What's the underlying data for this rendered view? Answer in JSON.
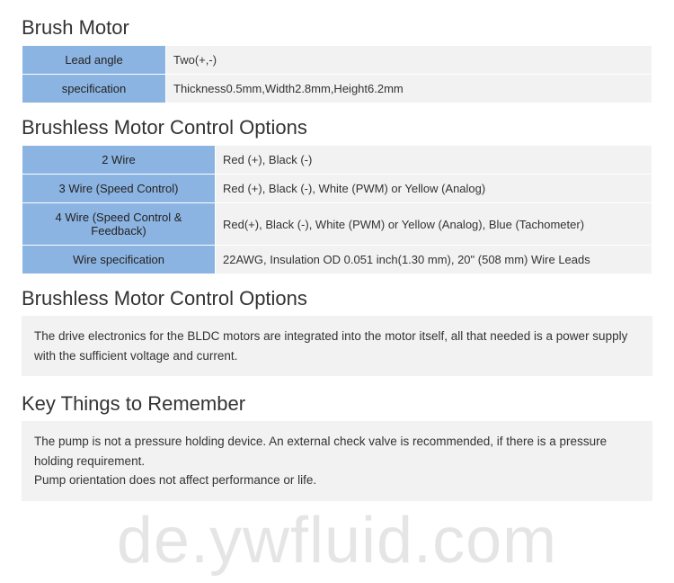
{
  "colors": {
    "header_cell_bg": "#8cb4e2",
    "value_cell_bg": "#f2f2f2",
    "cell_border": "#ffffff",
    "title_color": "#333333",
    "text_color": "#333333",
    "watermark_color": "rgba(0,0,0,0.10)",
    "page_bg": "#ffffff"
  },
  "typography": {
    "title_fontsize": 22,
    "title_weight": 300,
    "body_fontsize": 13,
    "info_fontsize": 13.5,
    "watermark_fontsize": 72
  },
  "section1": {
    "title": "Brush Motor",
    "rows": [
      {
        "label": "Lead angle",
        "value": "Two(+,-)"
      },
      {
        "label": "specification",
        "value": "Thickness0.5mm,Width2.8mm,Height6.2mm"
      }
    ]
  },
  "section2": {
    "title": "Brushless Motor Control Options",
    "rows": [
      {
        "label": "2 Wire",
        "value": "Red (+), Black (-)"
      },
      {
        "label": "3 Wire (Speed Control)",
        "value": "Red (+), Black (-), White (PWM) or Yellow (Analog)"
      },
      {
        "label": "4 Wire (Speed Control & Feedback)",
        "value": "Red(+), Black (-), White (PWM) or Yellow (Analog), Blue (Tachometer)"
      },
      {
        "label": "Wire specification",
        "value": "22AWG, Insulation OD 0.051 inch(1.30 mm), 20\" (508 mm) Wire Leads"
      }
    ]
  },
  "section3": {
    "title": "Brushless Motor Control Options",
    "body": "The drive electronics for the BLDC motors are integrated into the motor itself, all that needed is a power supply with the sufficient voltage and current."
  },
  "section4": {
    "title": "Key Things to Remember",
    "body_line1": "The pump is not a pressure holding device. An external check valve is recommended, if there is a pressure holding requirement.",
    "body_line2": "Pump orientation does not affect performance or life."
  },
  "watermark": "de.ywfluid.com"
}
